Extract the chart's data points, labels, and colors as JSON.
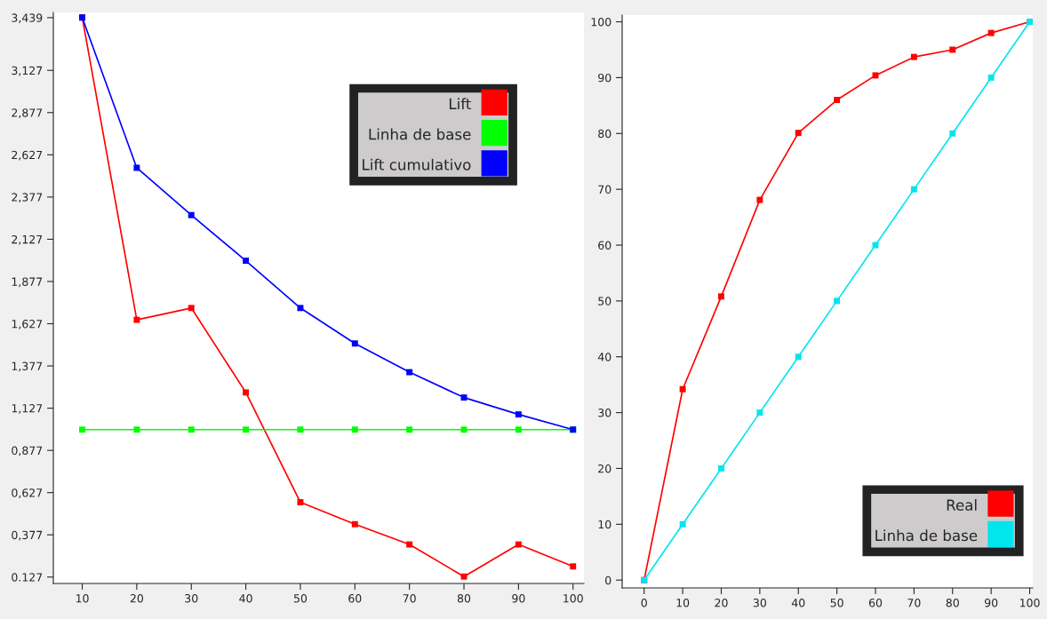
{
  "chart_data": [
    {
      "type": "line",
      "x": [
        10,
        20,
        30,
        40,
        50,
        60,
        70,
        80,
        90,
        100
      ],
      "series": [
        {
          "name": "Lift",
          "color": "#ff0000",
          "values": [
            3.44,
            1.65,
            1.72,
            1.22,
            0.57,
            0.44,
            0.32,
            0.13,
            0.32,
            0.19
          ]
        },
        {
          "name": "Linha de base",
          "color": "#00ff00",
          "values": [
            1.0,
            1.0,
            1.0,
            1.0,
            1.0,
            1.0,
            1.0,
            1.0,
            1.0,
            1.0
          ]
        },
        {
          "name": "Lift cumulativo",
          "color": "#0000ff",
          "values": [
            3.44,
            2.55,
            2.27,
            2.0,
            1.72,
            1.51,
            1.34,
            1.19,
            1.09,
            1.0
          ]
        }
      ],
      "xlim": [
        4.7,
        102
      ],
      "xticks": [
        10,
        20,
        30,
        40,
        50,
        60,
        70,
        80,
        90,
        100
      ],
      "ylim": [
        0.089,
        3.47
      ],
      "yticks": [
        {
          "value": 0.127,
          "label": "0.127"
        },
        {
          "value": 0.377,
          "label": "0,377"
        },
        {
          "value": 0.627,
          "label": "0,627"
        },
        {
          "value": 0.877,
          "label": "0,877"
        },
        {
          "value": 1.127,
          "label": "1,127"
        },
        {
          "value": 1.377,
          "label": "1,377"
        },
        {
          "value": 1.627,
          "label": "1,627"
        },
        {
          "value": 1.877,
          "label": "1,877"
        },
        {
          "value": 2.127,
          "label": "2,127"
        },
        {
          "value": 2.377,
          "label": "2,377"
        },
        {
          "value": 2.627,
          "label": "2,627"
        },
        {
          "value": 2.877,
          "label": "2,877"
        },
        {
          "value": 3.127,
          "label": "3,127"
        },
        {
          "value": 3.439,
          "label": "3,439"
        }
      ],
      "grid": false,
      "legend": "top right",
      "marker": "square",
      "line_style": "solid"
    },
    {
      "type": "line",
      "x": [
        0,
        10,
        20,
        30,
        40,
        50,
        60,
        70,
        80,
        90,
        100
      ],
      "series": [
        {
          "name": "Real",
          "color": "#ff0000",
          "values": [
            0,
            34.2,
            50.8,
            68.1,
            80.1,
            86.0,
            90.4,
            93.7,
            95.0,
            98.0,
            100
          ]
        },
        {
          "name": "Linha de base",
          "color": "#00e5ee",
          "values": [
            0,
            10,
            20,
            30,
            40,
            50,
            60,
            70,
            80,
            90,
            100
          ]
        }
      ],
      "xlim": [
        -5.7,
        100.8
      ],
      "xticks": [
        0,
        10,
        20,
        30,
        40,
        50,
        60,
        70,
        80,
        90,
        100
      ],
      "ylim": [
        -1.4,
        101.2
      ],
      "yticks": [
        0,
        10,
        20,
        30,
        40,
        50,
        60,
        70,
        80,
        90,
        100
      ],
      "grid": false,
      "legend": "bottom right",
      "marker": "square",
      "line_style": "solid"
    }
  ]
}
